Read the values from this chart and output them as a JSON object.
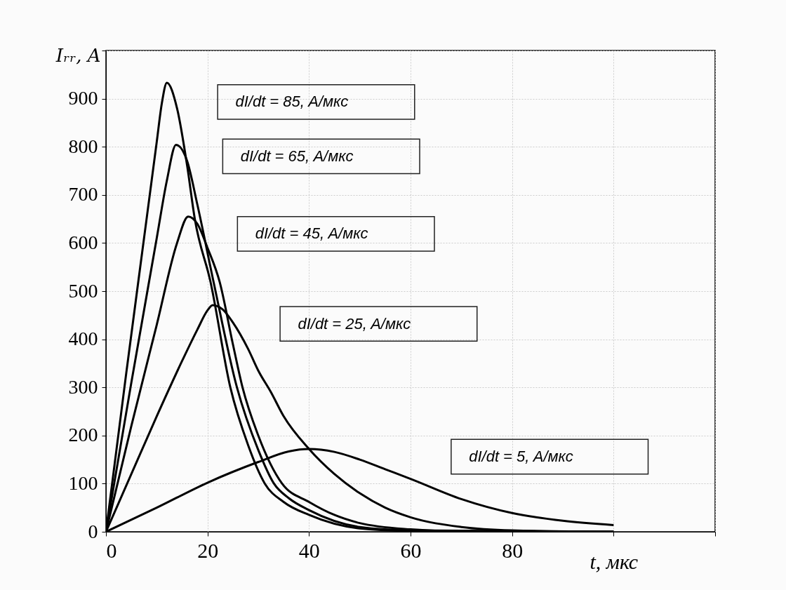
{
  "chart_data": {
    "type": "line",
    "xlabel": "t, мкс",
    "ylabel": "Iᵣᵣ, A",
    "xlim": [
      0,
      120
    ],
    "xticks": [
      0,
      20,
      40,
      60,
      80,
      {
        "value": 100,
        "label": null
      },
      {
        "value": 120,
        "label": null
      }
    ],
    "ylim": [
      0,
      1000
    ],
    "yticks": [
      0,
      100,
      200,
      300,
      400,
      500,
      600,
      700,
      800,
      900,
      {
        "value": 1000,
        "label": null
      }
    ],
    "grid": true,
    "legend": false,
    "annotations": [
      "dI/dt = 85, A/мкс",
      "dI/dt = 65, A/мкс",
      "dI/dt = 45, A/мкс",
      "dI/dt = 25, A/мкс",
      "dI/dt = 5, A/мкс"
    ],
    "line_style": "solid",
    "marker": "none",
    "series": [
      {
        "color": "#000000",
        "x": [
          0,
          4,
          8,
          10,
          11,
          12,
          14,
          16,
          17.5,
          20.6,
          24.5,
          28,
          31.3,
          35,
          40,
          50,
          60,
          100
        ],
        "values": [
          0,
          330,
          650,
          810,
          890,
          933,
          880,
          760,
          650,
          519,
          300,
          180,
          100,
          62,
          35,
          7,
          2,
          0
        ]
      },
      {
        "color": "#000000",
        "x": [
          0,
          5,
          10,
          12,
          13.8,
          16,
          18,
          21.2,
          25.8,
          30,
          33.1,
          36,
          40,
          50,
          60,
          100
        ],
        "values": [
          0,
          310,
          610,
          730,
          804,
          770,
          680,
          519,
          300,
          170,
          100,
          70,
          45,
          10,
          3,
          0
        ]
      },
      {
        "color": "#000000",
        "x": [
          0,
          5,
          10,
          14,
          16.2,
          18,
          20,
          22.4,
          25,
          26.9,
          30,
          34.7,
          40,
          45,
          50,
          60,
          70,
          100
        ],
        "values": [
          0,
          220,
          430,
          600,
          655,
          640,
          590,
          519,
          390,
          300,
          200,
          100,
          62,
          35,
          18,
          5,
          1,
          0
        ]
      },
      {
        "color": "#000000",
        "x": [
          0,
          5,
          10,
          15,
          18,
          20,
          21,
          23,
          25,
          28,
          30,
          32.5,
          35,
          40,
          45,
          50,
          55,
          60,
          70,
          80,
          100
        ],
        "values": [
          0,
          120,
          240,
          355,
          420,
          460,
          471,
          462,
          435,
          380,
          335,
          290,
          240,
          172,
          120,
          80,
          50,
          30,
          10,
          3,
          0
        ]
      },
      {
        "color": "#000000",
        "x": [
          0,
          10,
          20,
          30,
          36,
          40,
          45,
          50,
          55,
          60,
          70,
          80,
          90,
          100
        ],
        "values": [
          0,
          50,
          102,
          145,
          167,
          172,
          166,
          150,
          130,
          110,
          68,
          39,
          23,
          14
        ]
      }
    ]
  }
}
